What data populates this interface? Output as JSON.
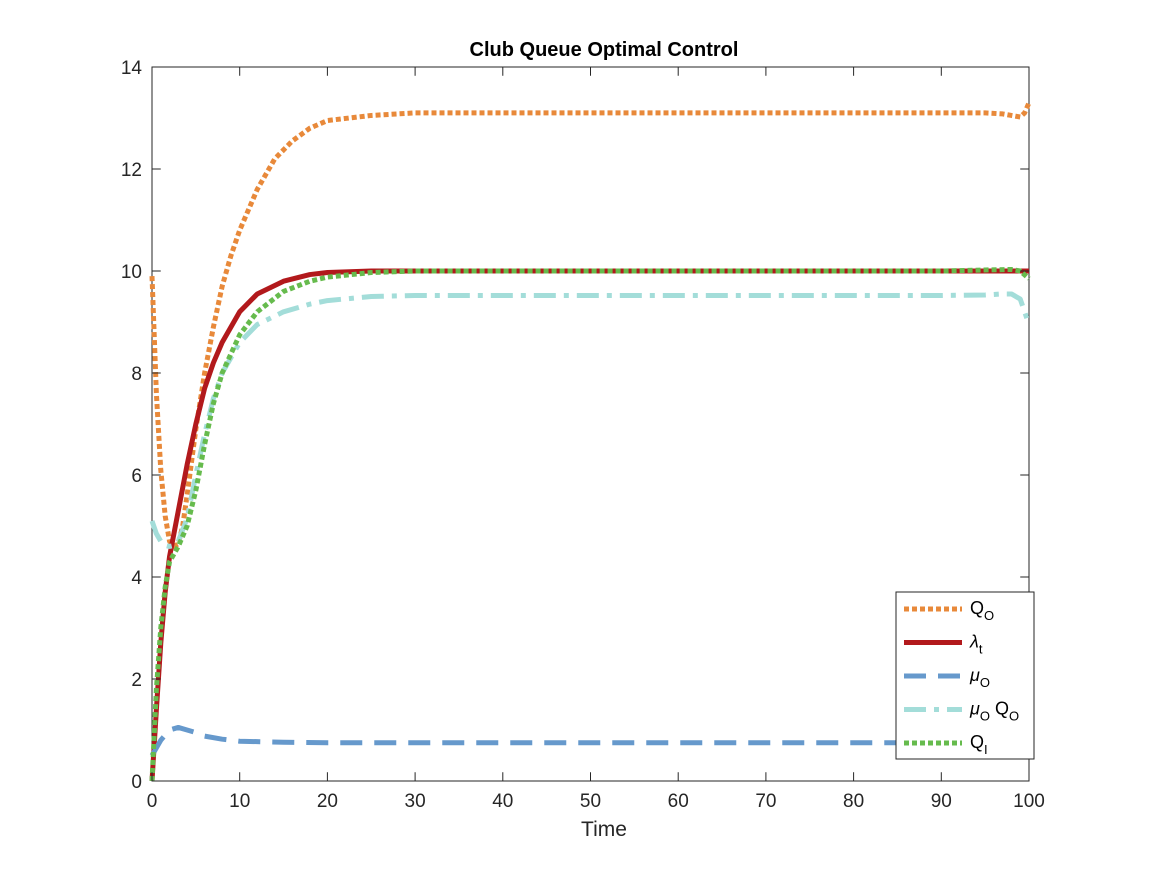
{
  "chart_data": {
    "type": "line",
    "title": "Club Queue Optimal Control",
    "xlabel": "Time",
    "ylabel": "",
    "xlim": [
      0,
      100
    ],
    "ylim": [
      0,
      14
    ],
    "xticks": [
      0,
      10,
      20,
      30,
      40,
      50,
      60,
      70,
      80,
      90,
      100
    ],
    "yticks": [
      0,
      2,
      4,
      6,
      8,
      10,
      12,
      14
    ],
    "xtick_labels": [
      "0",
      "10",
      "20",
      "30",
      "40",
      "50",
      "60",
      "70",
      "80",
      "90",
      "100"
    ],
    "ytick_labels": [
      "0",
      "2",
      "4",
      "6",
      "8",
      "10",
      "12",
      "14"
    ],
    "grid": false,
    "legend_position": "bottom-right",
    "series": [
      {
        "name": "Q_O",
        "legend_main": "Q",
        "legend_sub": "O",
        "legend_after": "",
        "color": "#E8893A",
        "style": "dotted",
        "x": [
          0,
          0.5,
          1,
          1.5,
          2,
          2.5,
          3,
          3.5,
          4,
          5,
          6,
          7,
          8,
          9,
          10,
          12,
          14,
          16,
          18,
          20,
          25,
          30,
          40,
          50,
          60,
          70,
          80,
          90,
          95,
          97,
          98,
          99,
          99.5,
          100
        ],
        "y": [
          9.9,
          7.6,
          6.1,
          5.2,
          4.7,
          4.6,
          4.65,
          5.0,
          5.6,
          6.9,
          8.0,
          8.9,
          9.7,
          10.3,
          10.8,
          11.6,
          12.2,
          12.55,
          12.8,
          12.95,
          13.05,
          13.1,
          13.1,
          13.1,
          13.1,
          13.1,
          13.1,
          13.1,
          13.1,
          13.08,
          13.05,
          13.02,
          13.1,
          13.3
        ]
      },
      {
        "name": "λ_t",
        "legend_main": "λ",
        "legend_sub": "t",
        "legend_after": "",
        "color": "#B2191C",
        "style": "solid",
        "x": [
          0,
          0.5,
          1,
          1.5,
          2,
          3,
          4,
          5,
          6,
          7,
          8,
          10,
          12,
          15,
          18,
          20,
          25,
          30,
          40,
          50,
          60,
          70,
          80,
          90,
          100
        ],
        "y": [
          0,
          1.4,
          2.7,
          3.7,
          4.4,
          5.3,
          6.2,
          7.0,
          7.7,
          8.2,
          8.6,
          9.2,
          9.55,
          9.8,
          9.93,
          9.97,
          10.0,
          10.0,
          10.0,
          10.0,
          10.0,
          10.0,
          10.0,
          10.0,
          10.0
        ]
      },
      {
        "name": "μ_O",
        "legend_main": "μ",
        "legend_sub": "O",
        "legend_after": "",
        "color": "#6699CC",
        "style": "dashed",
        "x": [
          0,
          0.5,
          1,
          1.5,
          2,
          3,
          4,
          5,
          6,
          8,
          10,
          15,
          20,
          30,
          40,
          50,
          60,
          70,
          80,
          90,
          95,
          98,
          100
        ],
        "y": [
          0.5,
          0.65,
          0.8,
          0.9,
          1.0,
          1.05,
          1.0,
          0.95,
          0.88,
          0.82,
          0.78,
          0.76,
          0.75,
          0.75,
          0.75,
          0.75,
          0.75,
          0.75,
          0.75,
          0.75,
          0.75,
          0.74,
          0.7
        ]
      },
      {
        "name": "μ_O Q_O",
        "legend_main": "μ",
        "legend_sub": "O",
        "legend_after": "Q_O",
        "color": "#A3DDD9",
        "style": "dashdot",
        "x": [
          0,
          0.5,
          1,
          1.5,
          2,
          2.5,
          3,
          4,
          5,
          6,
          7,
          8,
          10,
          12,
          15,
          18,
          20,
          25,
          30,
          40,
          50,
          60,
          70,
          80,
          90,
          95,
          97,
          98,
          99,
          100
        ],
        "y": [
          5.1,
          4.85,
          4.7,
          4.62,
          4.6,
          4.62,
          4.7,
          5.15,
          6.0,
          6.8,
          7.5,
          8.0,
          8.6,
          8.95,
          9.2,
          9.35,
          9.42,
          9.5,
          9.52,
          9.52,
          9.52,
          9.52,
          9.52,
          9.52,
          9.52,
          9.53,
          9.55,
          9.55,
          9.45,
          8.95
        ]
      },
      {
        "name": "Q_I",
        "legend_main": "Q",
        "legend_sub": "I",
        "legend_after": "",
        "color": "#66BB4D",
        "style": "dotted",
        "x": [
          0,
          0.5,
          1,
          1.5,
          2,
          3,
          4,
          5,
          6,
          7,
          8,
          10,
          12,
          15,
          18,
          20,
          25,
          30,
          40,
          50,
          60,
          70,
          80,
          90,
          95,
          98,
          99,
          100
        ],
        "y": [
          0,
          1.8,
          3.0,
          3.8,
          4.3,
          4.6,
          5.0,
          5.7,
          6.6,
          7.4,
          8.0,
          8.75,
          9.2,
          9.6,
          9.8,
          9.88,
          9.97,
          10.0,
          10.0,
          10.0,
          10.0,
          10.0,
          10.0,
          10.0,
          10.02,
          10.03,
          10.0,
          9.85
        ]
      }
    ]
  }
}
